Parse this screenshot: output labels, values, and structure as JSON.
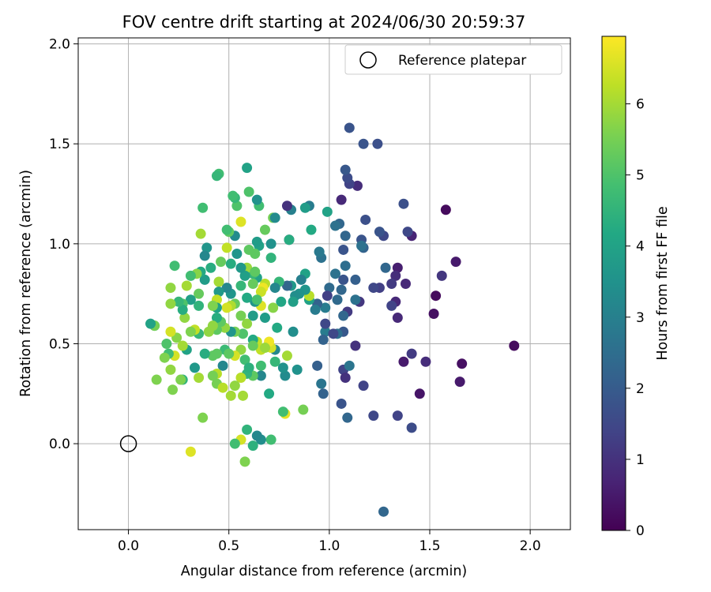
{
  "chart_data": {
    "type": "scatter",
    "title": "FOV centre drift starting at 2024/06/30 20:59:37",
    "xlabel": "Angular distance from reference (arcmin)",
    "ylabel": "Rotation from reference (arcmin)",
    "xlim": [
      -0.25,
      2.2
    ],
    "ylim": [
      -0.43,
      2.03
    ],
    "xticks": [
      0.0,
      0.5,
      1.0,
      1.5,
      2.0
    ],
    "xtick_labels": [
      "0.0",
      "0.5",
      "1.0",
      "1.5",
      "2.0"
    ],
    "yticks": [
      0.0,
      0.5,
      1.0,
      1.5,
      2.0
    ],
    "ytick_labels": [
      "0.0",
      "0.5",
      "1.0",
      "1.5",
      "2.0"
    ],
    "grid": true,
    "legend": {
      "label": "Reference platepar",
      "position": "top-right"
    },
    "reference_point": {
      "x": 0.0,
      "y": 0.0
    },
    "colorbar": {
      "label": "Hours from first FF file",
      "colormap": "viridis",
      "range": [
        0,
        6.95
      ],
      "ticks": [
        0,
        1,
        2,
        3,
        4,
        5,
        6
      ],
      "tick_labels": [
        "0",
        "1",
        "2",
        "3",
        "4",
        "5",
        "6"
      ]
    },
    "points": [
      [
        1.92,
        0.49,
        0.2
      ],
      [
        1.66,
        0.4,
        0.3
      ],
      [
        1.65,
        0.31,
        0.5
      ],
      [
        1.58,
        1.17,
        0.2
      ],
      [
        1.63,
        0.91,
        0.5
      ],
      [
        1.56,
        0.84,
        1.1
      ],
      [
        1.53,
        0.74,
        0.2
      ],
      [
        1.52,
        0.65,
        0.3
      ],
      [
        1.48,
        0.41,
        0.9
      ],
      [
        1.45,
        0.25,
        0.4
      ],
      [
        1.41,
        1.04,
        0.7
      ],
      [
        1.41,
        0.45,
        1.2
      ],
      [
        1.41,
        0.08,
        1.6
      ],
      [
        1.37,
        0.41,
        0.5
      ],
      [
        1.38,
        0.8,
        0.8
      ],
      [
        1.39,
        1.06,
        1.5
      ],
      [
        1.37,
        1.2,
        1.7
      ],
      [
        1.34,
        0.88,
        0.6
      ],
      [
        1.33,
        0.84,
        0.9
      ],
      [
        1.33,
        0.71,
        0.8
      ],
      [
        1.34,
        0.63,
        0.8
      ],
      [
        1.34,
        0.14,
        1.4
      ],
      [
        1.31,
        0.8,
        1.2
      ],
      [
        1.31,
        0.69,
        1.4
      ],
      [
        1.27,
        1.04,
        1.5
      ],
      [
        1.25,
        1.06,
        1.8
      ],
      [
        1.28,
        0.88,
        2.3
      ],
      [
        1.25,
        0.78,
        1.3
      ],
      [
        1.27,
        -0.34,
        2.3
      ],
      [
        1.24,
        1.5,
        1.7
      ],
      [
        1.17,
        1.5,
        1.8
      ],
      [
        1.18,
        1.12,
        1.7
      ],
      [
        1.16,
        1.02,
        1.8
      ],
      [
        1.17,
        0.98,
        2.2
      ],
      [
        1.15,
        0.71,
        1.1
      ],
      [
        1.17,
        0.29,
        1.4
      ],
      [
        1.22,
        0.14,
        1.5
      ],
      [
        1.22,
        0.78,
        1.5
      ],
      [
        1.14,
        1.29,
        0.9
      ],
      [
        1.1,
        1.58,
        1.8
      ],
      [
        1.1,
        1.3,
        1.4
      ],
      [
        1.09,
        1.33,
        1.6
      ],
      [
        1.08,
        1.37,
        1.9
      ],
      [
        1.06,
        1.22,
        0.8
      ],
      [
        1.08,
        1.04,
        2.3
      ],
      [
        1.05,
        1.1,
        2.3
      ],
      [
        1.03,
        1.09,
        2.6
      ],
      [
        1.07,
        0.97,
        1.8
      ],
      [
        1.08,
        0.89,
        2.5
      ],
      [
        1.07,
        0.82,
        1.8
      ],
      [
        1.06,
        0.77,
        2.3
      ],
      [
        1.04,
        0.72,
        2.4
      ],
      [
        1.13,
        0.82,
        2.1
      ],
      [
        1.13,
        0.72,
        2.6
      ],
      [
        1.13,
        0.49,
        1.0
      ],
      [
        1.09,
        0.66,
        1.2
      ],
      [
        1.07,
        0.64,
        2.3
      ],
      [
        1.07,
        0.56,
        1.9
      ],
      [
        1.04,
        0.55,
        2.5
      ],
      [
        1.07,
        0.37,
        1.4
      ],
      [
        1.08,
        0.33,
        1.0
      ],
      [
        1.1,
        0.39,
        2.7
      ],
      [
        1.09,
        0.13,
        2.3
      ],
      [
        1.06,
        0.2,
        1.8
      ],
      [
        1.03,
        0.85,
        2.6
      ],
      [
        1.0,
        0.78,
        2.4
      ],
      [
        0.99,
        0.74,
        1.3
      ],
      [
        0.98,
        0.68,
        2.9
      ],
      [
        0.98,
        0.56,
        2.9
      ],
      [
        0.98,
        0.6,
        1.5
      ],
      [
        0.97,
        0.52,
        2.2
      ],
      [
        0.96,
        0.93,
        2.6
      ],
      [
        0.95,
        0.96,
        3.4
      ],
      [
        0.94,
        0.39,
        2.1
      ],
      [
        0.96,
        0.3,
        2.7
      ],
      [
        0.97,
        0.25,
        2.2
      ],
      [
        0.99,
        1.16,
        4.0
      ],
      [
        0.94,
        0.7,
        2.2
      ],
      [
        0.93,
        0.67,
        2.9
      ],
      [
        0.91,
        1.07,
        4.2
      ],
      [
        0.9,
        0.72,
        4.0
      ],
      [
        0.9,
        0.74,
        6.2
      ],
      [
        0.9,
        1.19,
        2.9
      ],
      [
        0.88,
        0.77,
        3.6
      ],
      [
        0.88,
        0.85,
        4.0
      ],
      [
        0.87,
        0.17,
        5.5
      ],
      [
        0.86,
        0.82,
        3.0
      ],
      [
        0.85,
        0.75,
        3.5
      ],
      [
        0.84,
        0.37,
        3.5
      ],
      [
        0.83,
        0.74,
        3.4
      ],
      [
        0.82,
        0.71,
        3.9
      ],
      [
        0.82,
        0.56,
        3.4
      ],
      [
        0.81,
        0.79,
        3.7
      ],
      [
        0.81,
        1.17,
        3.0
      ],
      [
        0.79,
        0.79,
        2.3
      ],
      [
        0.8,
        1.02,
        1.2
      ],
      [
        0.79,
        1.19,
        1.0
      ],
      [
        0.79,
        0.44,
        6.0
      ],
      [
        0.78,
        0.34,
        3.3
      ],
      [
        0.78,
        0.15,
        6.7
      ],
      [
        0.77,
        0.16,
        4.8
      ],
      [
        0.77,
        0.38,
        3.5
      ],
      [
        0.76,
        0.71,
        4.1
      ],
      [
        0.75,
        0.81,
        4.6
      ],
      [
        0.74,
        0.58,
        4.2
      ],
      [
        0.73,
        0.78,
        3.2
      ],
      [
        0.73,
        0.47,
        3.2
      ],
      [
        0.73,
        0.41,
        4.6
      ],
      [
        0.71,
        0.48,
        6.5
      ],
      [
        0.72,
        0.68,
        5.7
      ],
      [
        0.7,
        0.51,
        6.8
      ],
      [
        0.7,
        0.25,
        4.2
      ],
      [
        0.71,
        0.02,
        4.8
      ],
      [
        0.71,
        0.93,
        4.5
      ],
      [
        0.71,
        1.0,
        3.5
      ],
      [
        0.72,
        1.13,
        5.5
      ],
      [
        0.73,
        1.13,
        3.3
      ],
      [
        0.68,
        1.07,
        5.3
      ],
      [
        0.68,
        0.8,
        6.2
      ],
      [
        0.68,
        0.63,
        3.8
      ],
      [
        0.67,
        0.78,
        6.8
      ],
      [
        0.66,
        0.76,
        6.4
      ],
      [
        0.66,
        0.69,
        6.6
      ],
      [
        0.66,
        0.47,
        6.3
      ],
      [
        0.66,
        0.39,
        4.8
      ],
      [
        0.66,
        0.34,
        3.2
      ],
      [
        0.66,
        0.02,
        3.4
      ],
      [
        0.65,
        1.19,
        4.8
      ],
      [
        0.65,
        0.99,
        4.0
      ],
      [
        0.64,
        1.22,
        3.5
      ],
      [
        0.64,
        1.01,
        3.8
      ],
      [
        0.64,
        0.83,
        4.0
      ],
      [
        0.64,
        0.51,
        6.3
      ],
      [
        0.64,
        0.04,
        3.2
      ],
      [
        0.63,
        0.95,
        5.2
      ],
      [
        0.63,
        0.71,
        3.6
      ],
      [
        0.62,
        0.85,
        4.6
      ],
      [
        0.62,
        0.8,
        5.3
      ],
      [
        0.62,
        0.64,
        3.8
      ],
      [
        0.62,
        0.52,
        4.2
      ],
      [
        0.62,
        0.49,
        5.3
      ],
      [
        0.62,
        0.34,
        5.2
      ],
      [
        0.62,
        -0.01,
        4.4
      ],
      [
        0.6,
        0.97,
        5.2
      ],
      [
        0.6,
        1.26,
        5.0
      ],
      [
        0.59,
        1.38,
        4.0
      ],
      [
        0.59,
        0.88,
        5.9
      ],
      [
        0.59,
        0.73,
        4.2
      ],
      [
        0.59,
        0.6,
        5.8
      ],
      [
        0.58,
        0.84,
        3.9
      ],
      [
        0.58,
        0.42,
        4.8
      ],
      [
        0.59,
        0.35,
        4.5
      ],
      [
        0.59,
        0.07,
        4.5
      ],
      [
        0.58,
        -0.09,
        5.6
      ],
      [
        0.57,
        0.55,
        5.0
      ],
      [
        0.56,
        1.11,
        6.6
      ],
      [
        0.56,
        0.88,
        3.7
      ],
      [
        0.56,
        0.79,
        4.6
      ],
      [
        0.56,
        0.64,
        5.5
      ],
      [
        0.56,
        0.47,
        5.8
      ],
      [
        0.56,
        0.33,
        6.2
      ],
      [
        0.56,
        0.02,
        6.5
      ],
      [
        0.54,
        1.19,
        5.0
      ],
      [
        0.54,
        0.95,
        3.6
      ],
      [
        0.53,
        1.23,
        4.6
      ],
      [
        0.53,
        1.04,
        3.3
      ],
      [
        0.53,
        0.7,
        5.3
      ],
      [
        0.53,
        0.56,
        5.5
      ],
      [
        0.53,
        0.44,
        6.5
      ],
      [
        0.53,
        0.29,
        5.8
      ],
      [
        0.53,
        0.0,
        4.8
      ],
      [
        0.52,
        1.24,
        4.8
      ],
      [
        0.51,
        0.9,
        4.3
      ],
      [
        0.51,
        0.75,
        3.6
      ],
      [
        0.51,
        0.69,
        6.1
      ],
      [
        0.51,
        0.56,
        3.6
      ],
      [
        0.51,
        0.24,
        6.0
      ],
      [
        0.5,
        1.06,
        5.2
      ],
      [
        0.49,
        1.07,
        4.8
      ],
      [
        0.49,
        0.98,
        6.3
      ],
      [
        0.49,
        0.78,
        3.2
      ],
      [
        0.49,
        0.68,
        6.5
      ],
      [
        0.48,
        0.58,
        5.8
      ],
      [
        0.48,
        0.47,
        4.7
      ],
      [
        0.47,
        0.39,
        3.2
      ],
      [
        0.46,
        0.91,
        5.3
      ],
      [
        0.46,
        0.61,
        5.2
      ],
      [
        0.45,
        1.35,
        4.8
      ],
      [
        0.45,
        0.81,
        6.0
      ],
      [
        0.45,
        0.76,
        3.7
      ],
      [
        0.44,
        1.34,
        4.6
      ],
      [
        0.44,
        0.72,
        6.3
      ],
      [
        0.44,
        0.68,
        4.0
      ],
      [
        0.44,
        0.63,
        4.3
      ],
      [
        0.44,
        0.57,
        5.2
      ],
      [
        0.44,
        0.45,
        5.2
      ],
      [
        0.44,
        0.35,
        6.2
      ],
      [
        0.44,
        0.3,
        5.5
      ],
      [
        0.42,
        0.69,
        5.6
      ],
      [
        0.42,
        0.59,
        5.8
      ],
      [
        0.42,
        0.44,
        5.2
      ],
      [
        0.42,
        0.34,
        5.5
      ],
      [
        0.41,
        0.88,
        4.3
      ],
      [
        0.4,
        0.56,
        5.8
      ],
      [
        0.39,
        0.98,
        3.6
      ],
      [
        0.38,
        0.94,
        3.2
      ],
      [
        0.38,
        0.82,
        3.8
      ],
      [
        0.38,
        0.45,
        4.3
      ],
      [
        0.37,
        1.18,
        4.8
      ],
      [
        0.36,
        1.05,
        6.0
      ],
      [
        0.36,
        0.86,
        4.2
      ],
      [
        0.35,
        0.75,
        5.3
      ],
      [
        0.35,
        0.69,
        4.5
      ],
      [
        0.35,
        0.55,
        4.6
      ],
      [
        0.35,
        0.33,
        6.0
      ],
      [
        0.34,
        0.85,
        5.7
      ],
      [
        0.33,
        0.57,
        6.3
      ],
      [
        0.33,
        0.38,
        3.7
      ],
      [
        0.31,
        0.84,
        4.8
      ],
      [
        0.31,
        0.72,
        3.9
      ],
      [
        0.31,
        0.56,
        5.6
      ],
      [
        0.31,
        -0.04,
        6.6
      ],
      [
        0.29,
        0.79,
        6.0
      ],
      [
        0.29,
        0.47,
        4.0
      ],
      [
        0.28,
        0.63,
        5.8
      ],
      [
        0.27,
        0.7,
        5.0
      ],
      [
        0.27,
        0.67,
        4.3
      ],
      [
        0.27,
        0.49,
        6.0
      ],
      [
        0.27,
        0.32,
        4.5
      ],
      [
        0.26,
        0.32,
        5.6
      ],
      [
        0.25,
        0.71,
        4.6
      ],
      [
        0.24,
        0.53,
        5.7
      ],
      [
        0.23,
        0.89,
        4.8
      ],
      [
        0.23,
        0.44,
        6.5
      ],
      [
        0.22,
        0.27,
        5.6
      ],
      [
        0.21,
        0.7,
        5.8
      ],
      [
        0.21,
        0.78,
        5.8
      ],
      [
        0.21,
        0.56,
        6.5
      ],
      [
        0.21,
        0.37,
        5.8
      ],
      [
        0.2,
        0.45,
        4.8
      ],
      [
        0.19,
        0.5,
        5.0
      ],
      [
        0.18,
        0.43,
        5.6
      ],
      [
        0.14,
        0.32,
        5.6
      ],
      [
        0.13,
        0.59,
        4.5
      ],
      [
        0.13,
        0.59,
        5.5
      ],
      [
        0.11,
        0.6,
        4.0
      ],
      [
        0.8,
        1.02,
        4.3
      ],
      [
        0.95,
        0.96,
        2.8
      ],
      [
        1.02,
        0.55,
        1.5
      ],
      [
        1.16,
        0.99,
        2.6
      ],
      [
        0.88,
        1.18,
        3.8
      ],
      [
        0.5,
        0.45,
        5.2
      ],
      [
        0.47,
        0.28,
        6.2
      ],
      [
        0.63,
        0.86,
        5.2
      ],
      [
        0.6,
        0.38,
        4.4
      ],
      [
        0.68,
        0.48,
        5.9
      ],
      [
        0.37,
        0.13,
        5.6
      ],
      [
        0.57,
        0.24,
        6.0
      ],
      [
        0.64,
        0.72,
        4.9
      ]
    ]
  }
}
